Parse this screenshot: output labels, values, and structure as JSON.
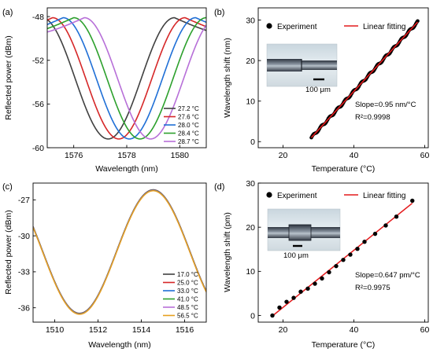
{
  "chart_data": [
    {
      "panel": "(a)",
      "type": "line",
      "xlabel": "Wavelength (nm)",
      "ylabel": "Reflected power (dBm)",
      "xlim": [
        1575,
        1581
      ],
      "ylim": [
        -60,
        -47.2
      ],
      "xticks": [
        1576,
        1578,
        1580
      ],
      "yticks": [
        -60,
        -56,
        -52,
        -48
      ],
      "legend_position": "bottom-right",
      "series": [
        {
          "name": "27.2 °C",
          "color": "#404040",
          "min_x": 1577.3
        },
        {
          "name": "27.6 °C",
          "color": "#d62728",
          "min_x": 1577.7
        },
        {
          "name": "28.0 °C",
          "color": "#1f6fd6",
          "min_x": 1578.1
        },
        {
          "name": "28.4 °C",
          "color": "#2ca02c",
          "min_x": 1578.5
        },
        {
          "name": "28.7 °C",
          "color": "#b76fd8",
          "min_x": 1578.9
        }
      ],
      "curve": {
        "min_y": -59.2,
        "top_y": -48.1,
        "half_width": 2.5,
        "tail_y": -49.8
      }
    },
    {
      "panel": "(b)",
      "type": "scatter",
      "xlabel": "Temperature (°C)",
      "ylabel": "Wavelength shift (nm)",
      "xlim": [
        13,
        61
      ],
      "ylim": [
        -1.5,
        33
      ],
      "xticks": [
        20,
        40,
        60
      ],
      "yticks": [
        0,
        10,
        20,
        30
      ],
      "legend": [
        "Experiment",
        "Linear fitting"
      ],
      "legend_position": "top",
      "experiment_range": [
        28,
        58
      ],
      "experiment_points": 120,
      "fit": {
        "slope": 0.95,
        "intercept": -25.6
      },
      "annotations": [
        "Slope=0.95 nm/°C",
        "R²=0.9998"
      ],
      "inset_scale": "100 μm"
    },
    {
      "panel": "(c)",
      "type": "line",
      "xlabel": "Wavelength (nm)",
      "ylabel": "Reflected power (dBm)",
      "xlim": [
        1509,
        1517
      ],
      "ylim": [
        -37.2,
        -25.6
      ],
      "xticks": [
        1510,
        1512,
        1514,
        1516
      ],
      "yticks": [
        -36,
        -33,
        -30,
        -27
      ],
      "legend_position": "bottom-right",
      "series": [
        {
          "name": "17.0 °C",
          "color": "#404040"
        },
        {
          "name": "25.0 °C",
          "color": "#d62728"
        },
        {
          "name": "33.0 °C",
          "color": "#1f6fd6"
        },
        {
          "name": "41.0 °C",
          "color": "#2ca02c"
        },
        {
          "name": "48.5 °C",
          "color": "#b76fd8"
        },
        {
          "name": "56.5 °C",
          "color": "#e6a01e"
        }
      ],
      "curve": {
        "min_x": 1511.15,
        "min_y": -36.5,
        "max_x": 1514.55,
        "max_y": -26.2
      }
    },
    {
      "panel": "(d)",
      "type": "scatter",
      "xlabel": "Temperature (°C)",
      "ylabel": "Wavelength shift (pm)",
      "xlim": [
        13,
        61
      ],
      "ylim": [
        -1.5,
        30
      ],
      "xticks": [
        20,
        40,
        60
      ],
      "yticks": [
        0,
        10,
        20,
        30
      ],
      "legend": [
        "Experiment",
        "Linear fitting"
      ],
      "legend_position": "top",
      "experiment": {
        "x": [
          17,
          19,
          21,
          23,
          25,
          27,
          29,
          31,
          33,
          35,
          37,
          39,
          41,
          43,
          46,
          49,
          52,
          56.5
        ],
        "y": [
          0,
          1.8,
          3.1,
          4.0,
          5.4,
          6.1,
          7.2,
          8.4,
          9.8,
          11.2,
          12.6,
          13.8,
          15.1,
          16.7,
          18.5,
          20.4,
          22.4,
          26.0
        ]
      },
      "fit": {
        "slope": 0.647,
        "intercept": -11.1
      },
      "annotations": [
        "Slope=0.647 pm/°C",
        "R²=0.9975"
      ],
      "inset_scale": "100 μm"
    }
  ]
}
